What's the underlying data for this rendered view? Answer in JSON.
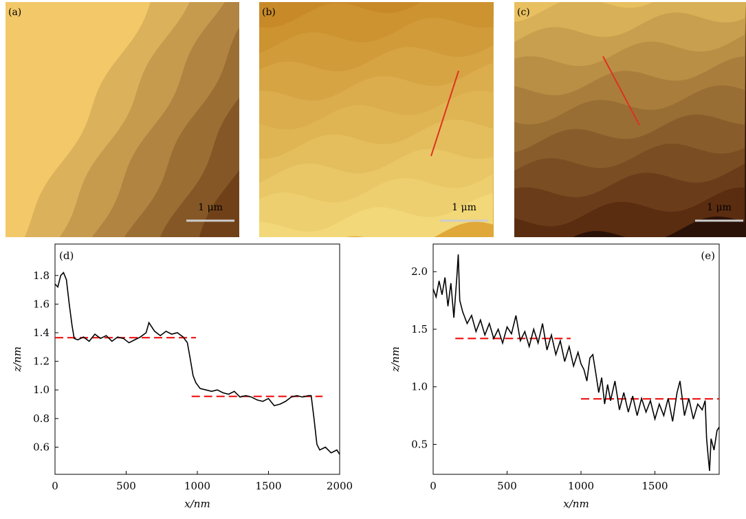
{
  "images": [
    {
      "label": "(a)",
      "scale_bar": "1 μm"
    },
    {
      "label": "(b)",
      "scale_bar": "1 μm"
    },
    {
      "label": "(c)",
      "scale_bar": "1 μm"
    }
  ],
  "chart_data": [
    {
      "type": "line",
      "panel": "(d)",
      "xlabel": "x/nm",
      "ylabel": "z/nm",
      "xlim": [
        0,
        2000
      ],
      "xticks": [
        0,
        500,
        1000,
        1500,
        2000
      ],
      "ylim": [
        0.41,
        2.02
      ],
      "yticks": [
        0.6,
        0.8,
        {
          "value": 1,
          "label": "1.0"
        },
        1.2,
        1.4,
        1.6,
        1.8
      ],
      "series": [
        {
          "color": "#000000",
          "x": [
            0,
            20,
            40,
            60,
            80,
            100,
            120,
            135,
            160,
            200,
            240,
            280,
            320,
            360,
            400,
            440,
            480,
            520,
            560,
            600,
            640,
            660,
            700,
            740,
            780,
            820,
            860,
            900,
            930,
            950,
            970,
            990,
            1020,
            1060,
            1100,
            1140,
            1180,
            1220,
            1260,
            1300,
            1340,
            1380,
            1420,
            1460,
            1500,
            1540,
            1580,
            1620,
            1660,
            1700,
            1740,
            1780,
            1800,
            1820,
            1840,
            1860,
            1900,
            1940,
            1980,
            2000
          ],
          "values": [
            1.74,
            1.72,
            1.8,
            1.82,
            1.77,
            1.6,
            1.45,
            1.36,
            1.35,
            1.37,
            1.34,
            1.39,
            1.36,
            1.38,
            1.34,
            1.37,
            1.36,
            1.33,
            1.35,
            1.37,
            1.4,
            1.47,
            1.41,
            1.38,
            1.41,
            1.39,
            1.4,
            1.37,
            1.33,
            1.22,
            1.1,
            1.05,
            1.01,
            1,
            0.99,
            1,
            0.98,
            0.97,
            0.99,
            0.95,
            0.96,
            0.95,
            0.93,
            0.92,
            0.94,
            0.89,
            0.9,
            0.92,
            0.95,
            0.96,
            0.95,
            0.96,
            0.96,
            0.8,
            0.62,
            0.58,
            0.6,
            0.56,
            0.58,
            0.55
          ]
        }
      ],
      "hlines": [
        {
          "y": 1.365,
          "x": [
            0,
            990
          ],
          "color": "#ee0000"
        },
        {
          "y": 0.955,
          "x": [
            960,
            1880
          ],
          "color": "#ee0000"
        }
      ]
    },
    {
      "type": "line",
      "panel": "(e)",
      "xlabel": "x/nm",
      "ylabel": "z/nm",
      "xlim": [
        0,
        1935
      ],
      "xticks": [
        0,
        500,
        1000,
        1500
      ],
      "ylim": [
        0.24,
        2.24
      ],
      "yticks": [
        0.5,
        {
          "value": 1,
          "label": "1.0"
        },
        1.5,
        {
          "value": 2,
          "label": "2.0"
        }
      ],
      "series": [
        {
          "color": "#000000",
          "x": [
            0,
            20,
            40,
            60,
            80,
            100,
            120,
            140,
            160,
            170,
            180,
            200,
            230,
            260,
            290,
            320,
            350,
            380,
            410,
            440,
            470,
            500,
            530,
            560,
            590,
            620,
            650,
            680,
            710,
            740,
            770,
            800,
            830,
            860,
            890,
            920,
            950,
            980,
            1000,
            1020,
            1040,
            1060,
            1080,
            1100,
            1120,
            1140,
            1160,
            1180,
            1200,
            1230,
            1260,
            1290,
            1320,
            1350,
            1380,
            1410,
            1440,
            1470,
            1500,
            1530,
            1560,
            1590,
            1620,
            1650,
            1670,
            1700,
            1730,
            1760,
            1790,
            1820,
            1840,
            1850,
            1860,
            1870,
            1880,
            1900,
            1920,
            1935
          ],
          "values": [
            1.85,
            1.78,
            1.92,
            1.8,
            1.95,
            1.7,
            1.9,
            1.6,
            1.95,
            2.15,
            1.75,
            1.65,
            1.55,
            1.62,
            1.48,
            1.58,
            1.45,
            1.55,
            1.42,
            1.5,
            1.38,
            1.52,
            1.46,
            1.62,
            1.4,
            1.48,
            1.35,
            1.5,
            1.38,
            1.55,
            1.32,
            1.45,
            1.28,
            1.4,
            1.22,
            1.35,
            1.18,
            1.3,
            1.2,
            1.15,
            1.05,
            1.25,
            1.28,
            1.12,
            0.95,
            1.08,
            0.85,
            1.02,
            0.88,
            1.05,
            0.8,
            0.95,
            0.78,
            0.92,
            0.75,
            0.9,
            0.78,
            0.88,
            0.72,
            0.85,
            0.75,
            0.9,
            0.7,
            0.95,
            1.05,
            0.75,
            0.9,
            0.72,
            0.85,
            0.8,
            0.88,
            0.55,
            0.4,
            0.27,
            0.55,
            0.45,
            0.62,
            0.65
          ]
        }
      ],
      "hlines": [
        {
          "y": 1.42,
          "x": [
            150,
            930
          ],
          "color": "#ee0000"
        },
        {
          "y": 0.895,
          "x": [
            1000,
            1935
          ],
          "color": "#ee0000"
        }
      ]
    }
  ]
}
